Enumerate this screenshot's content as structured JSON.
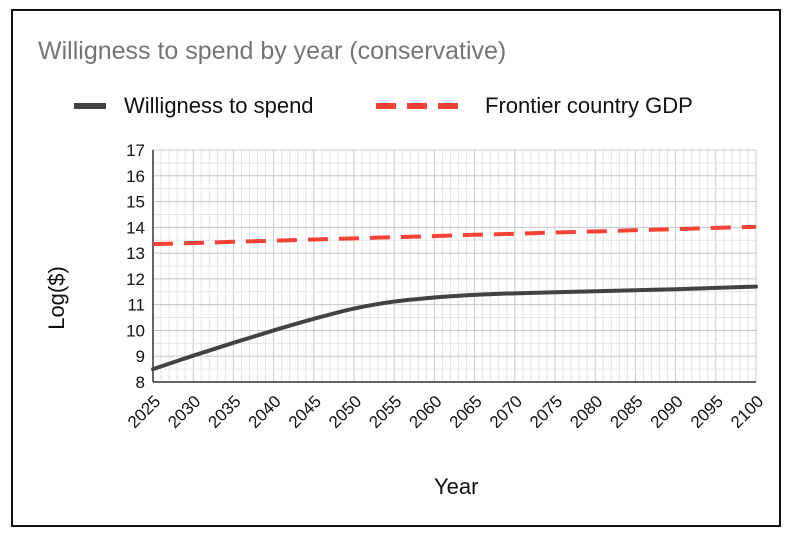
{
  "chart_data": {
    "type": "line",
    "title": "Willigness to spend by year (conservative)",
    "xlabel": "Year",
    "ylabel": "Log($)",
    "xlim": [
      2025,
      2100
    ],
    "ylim": [
      8,
      17
    ],
    "x_ticks": [
      2025,
      2030,
      2035,
      2040,
      2045,
      2050,
      2055,
      2060,
      2065,
      2070,
      2075,
      2080,
      2085,
      2090,
      2095,
      2100
    ],
    "y_ticks": [
      8,
      9,
      10,
      11,
      12,
      13,
      14,
      15,
      16,
      17
    ],
    "x_minor_step": 1,
    "y_minor_step": 0.5,
    "grid": true,
    "legend_position": "top",
    "series": [
      {
        "name": "Willigness to spend",
        "color": "#424242",
        "style": "solid",
        "x": [
          2025,
          2030,
          2035,
          2040,
          2045,
          2050,
          2055,
          2060,
          2065,
          2070,
          2075,
          2080,
          2085,
          2090,
          2095,
          2100
        ],
        "values": [
          8.5,
          9.02,
          9.52,
          10.0,
          10.45,
          10.85,
          11.12,
          11.28,
          11.38,
          11.44,
          11.48,
          11.52,
          11.56,
          11.6,
          11.65,
          11.7
        ]
      },
      {
        "name": "Frontier country GDP",
        "color": "#f44336",
        "style": "dashed",
        "x": [
          2025,
          2030,
          2035,
          2040,
          2045,
          2050,
          2055,
          2060,
          2065,
          2070,
          2075,
          2080,
          2085,
          2090,
          2095,
          2100
        ],
        "values": [
          13.35,
          13.39,
          13.44,
          13.48,
          13.53,
          13.57,
          13.62,
          13.66,
          13.71,
          13.75,
          13.8,
          13.84,
          13.89,
          13.93,
          13.98,
          14.02
        ]
      }
    ]
  }
}
